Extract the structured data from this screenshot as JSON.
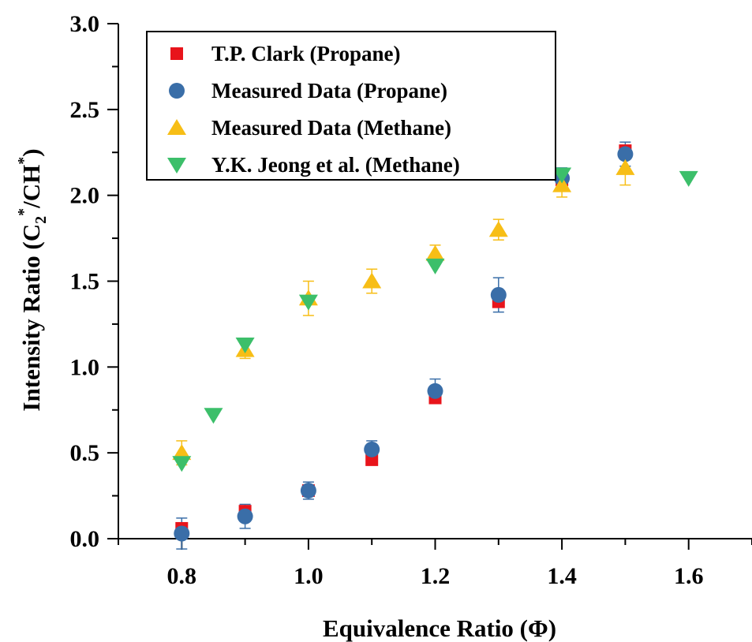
{
  "chart_data": {
    "type": "scatter",
    "xlabel": "Equivalence Ratio (Φ)",
    "ylabel": {
      "prefix": "Intensity Ratio (C",
      "sub": "2",
      "sup1": "*",
      "mid": "/CH",
      "sup2": "*",
      "suffix": ")"
    },
    "xlim": [
      0.7,
      1.7
    ],
    "ylim": [
      0.0,
      3.0
    ],
    "x_ticks": [
      0.8,
      1.0,
      1.2,
      1.4,
      1.6
    ],
    "x_tick_labels": [
      "0.8",
      "1.0",
      "1.2",
      "1.4",
      "1.6"
    ],
    "y_ticks": [
      0.0,
      0.5,
      1.0,
      1.5,
      2.0,
      2.5,
      3.0
    ],
    "y_tick_labels": [
      "0.0",
      "0.5",
      "1.0",
      "1.5",
      "2.0",
      "2.5",
      "3.0"
    ],
    "grid": false,
    "legend_position": "top-left",
    "series": [
      {
        "name": "T.P. Clark (Propane)",
        "marker": "square",
        "color": "#e8141b",
        "x": [
          0.8,
          0.9,
          1.0,
          1.1,
          1.2,
          1.3,
          1.4,
          1.5
        ],
        "y": [
          0.06,
          0.16,
          0.28,
          0.46,
          0.82,
          1.38,
          2.09,
          2.26
        ],
        "err": []
      },
      {
        "name": "Measured Data (Propane)",
        "marker": "circle",
        "color": "#3a6ea8",
        "x": [
          0.8,
          0.9,
          1.0,
          1.1,
          1.2,
          1.3,
          1.4,
          1.5
        ],
        "y": [
          0.03,
          0.13,
          0.28,
          0.52,
          0.86,
          1.42,
          2.1,
          2.24
        ],
        "err": [
          0.09,
          0.07,
          0.05,
          0.05,
          0.07,
          0.1,
          0.06,
          0.07
        ]
      },
      {
        "name": "Measured Data (Methane)",
        "marker": "triangle-up",
        "color": "#f7be16",
        "x": [
          0.8,
          0.9,
          1.0,
          1.1,
          1.2,
          1.3,
          1.4,
          1.5
        ],
        "y": [
          0.5,
          1.1,
          1.4,
          1.5,
          1.66,
          1.8,
          2.06,
          2.16
        ],
        "err": [
          0.07,
          0.05,
          0.1,
          0.07,
          0.05,
          0.06,
          0.07,
          0.1
        ]
      },
      {
        "name": "Y.K. Jeong et al. (Methane)",
        "marker": "triangle-down",
        "color": "#3cbf6a",
        "x": [
          0.8,
          0.85,
          0.9,
          1.0,
          1.2,
          1.4,
          1.6
        ],
        "y": [
          0.44,
          0.72,
          1.13,
          1.38,
          1.59,
          2.12,
          2.1
        ],
        "err": []
      }
    ]
  }
}
